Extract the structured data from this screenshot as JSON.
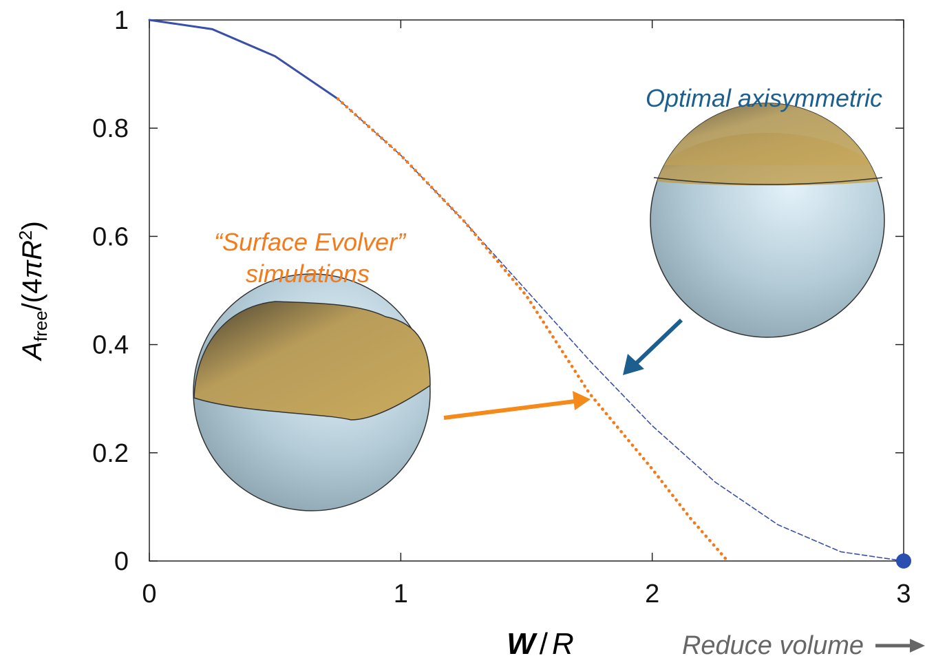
{
  "chart_data": {
    "type": "line",
    "xlabel": [
      "W",
      "/",
      "R"
    ],
    "ylabel": [
      "A",
      "free",
      "/(4",
      "π",
      "R",
      "2",
      ")"
    ],
    "xlim": [
      0,
      3
    ],
    "ylim": [
      0,
      1
    ],
    "xticks": [
      0,
      1,
      2,
      3
    ],
    "yticks": [
      0,
      0.2,
      0.4,
      0.6,
      0.8,
      1
    ],
    "series": [
      {
        "color": "#3a4fa8",
        "dash": "solid",
        "x": [
          0,
          0.25,
          0.5,
          0.75
        ],
        "values": [
          1,
          0.983,
          0.933,
          0.854
        ]
      },
      {
        "color": "#3a4fa8",
        "dash": "dashed",
        "x": [
          0.75,
          1,
          1.25,
          1.5,
          1.75,
          2,
          2.25,
          2.5,
          2.75,
          3
        ],
        "values": [
          0.854,
          0.75,
          0.629,
          0.5,
          0.371,
          0.25,
          0.146,
          0.067,
          0.017,
          0
        ]
      },
      {
        "color": "#f47a1a",
        "dash": "dotted",
        "x": [
          0.75,
          1,
          1.25,
          1.5,
          1.75,
          2,
          2.15,
          2.3
        ],
        "values": [
          0.854,
          0.75,
          0.629,
          0.49,
          0.31,
          0.17,
          0.08,
          0
        ]
      },
      {
        "color": "#2a4fb0",
        "dash": "marker",
        "x": [
          3
        ],
        "values": [
          0
        ]
      }
    ],
    "annotations": [
      {
        "text": "Optimal axisymmetric",
        "color": "#1c5f8f"
      },
      {
        "text": "“Surface Evolver”",
        "color": "#f47a1a"
      },
      {
        "text": "simulations",
        "color": "#f47a1a"
      },
      {
        "text": "Reduce volume",
        "color": "#666666"
      }
    ]
  }
}
